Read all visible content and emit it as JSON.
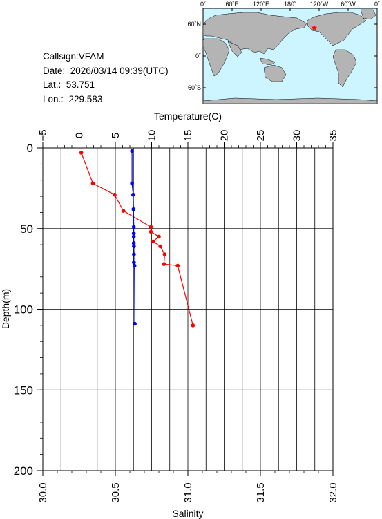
{
  "info": {
    "callsign_line": "Callsign:VFAM",
    "date_line": "Date:  2026/03/14 09:39(UTC)",
    "lat_line": "Lat.:  53.751",
    "lon_line": "Lon.:  229.583"
  },
  "map": {
    "top_ticks": [
      "0˚",
      "60˚E",
      "120˚E",
      "180˚",
      "120˚W",
      "60˚W",
      "0˚"
    ],
    "left_ticks": [
      "60˚N",
      "0˚",
      "60˚S"
    ],
    "station_lat": 53.751,
    "station_lon": 229.583,
    "ocean_color": "#cdf5ff",
    "land_color": "#b4b4b4",
    "marker_color": "#ff0000"
  },
  "chart_data": {
    "type": "line",
    "xlabel_top": "Temperature(C)",
    "xlabel_bottom": "Salinity",
    "ylabel": "Depth(m)",
    "temperature_ticks": [
      "−5",
      "0",
      "5",
      "10",
      "15",
      "20",
      "25",
      "30",
      "35"
    ],
    "salinity_ticks": [
      "30.0",
      "30.5",
      "31.0",
      "31.5",
      "32.0"
    ],
    "depth_ticks": [
      "0",
      "50",
      "100",
      "150",
      "200"
    ],
    "temperature_range": [
      -5,
      35
    ],
    "salinity_range": [
      30.0,
      32.0
    ],
    "depth_range": [
      0,
      200
    ],
    "grid": true,
    "series": [
      {
        "axis": "temperature",
        "color": "#ff0000",
        "points": [
          {
            "x": 0.3,
            "depth": 3
          },
          {
            "x": 1.9,
            "depth": 22
          },
          {
            "x": 4.9,
            "depth": 29
          },
          {
            "x": 6.1,
            "depth": 39
          },
          {
            "x": 9.9,
            "depth": 49
          },
          {
            "x": 9.9,
            "depth": 52
          },
          {
            "x": 11.0,
            "depth": 55
          },
          {
            "x": 10.2,
            "depth": 58
          },
          {
            "x": 11.2,
            "depth": 61
          },
          {
            "x": 11.8,
            "depth": 66
          },
          {
            "x": 11.7,
            "depth": 72
          },
          {
            "x": 13.6,
            "depth": 73
          },
          {
            "x": 15.7,
            "depth": 110
          }
        ]
      },
      {
        "axis": "salinity",
        "color": "#0000ff",
        "points": [
          {
            "x": 30.615,
            "depth": 2
          },
          {
            "x": 30.615,
            "depth": 22
          },
          {
            "x": 30.623,
            "depth": 29
          },
          {
            "x": 30.625,
            "depth": 38
          },
          {
            "x": 30.627,
            "depth": 49
          },
          {
            "x": 30.627,
            "depth": 53
          },
          {
            "x": 30.627,
            "depth": 55
          },
          {
            "x": 30.627,
            "depth": 59
          },
          {
            "x": 30.628,
            "depth": 61
          },
          {
            "x": 30.628,
            "depth": 66
          },
          {
            "x": 30.628,
            "depth": 71
          },
          {
            "x": 30.632,
            "depth": 73
          },
          {
            "x": 30.634,
            "depth": 109
          }
        ]
      }
    ]
  }
}
